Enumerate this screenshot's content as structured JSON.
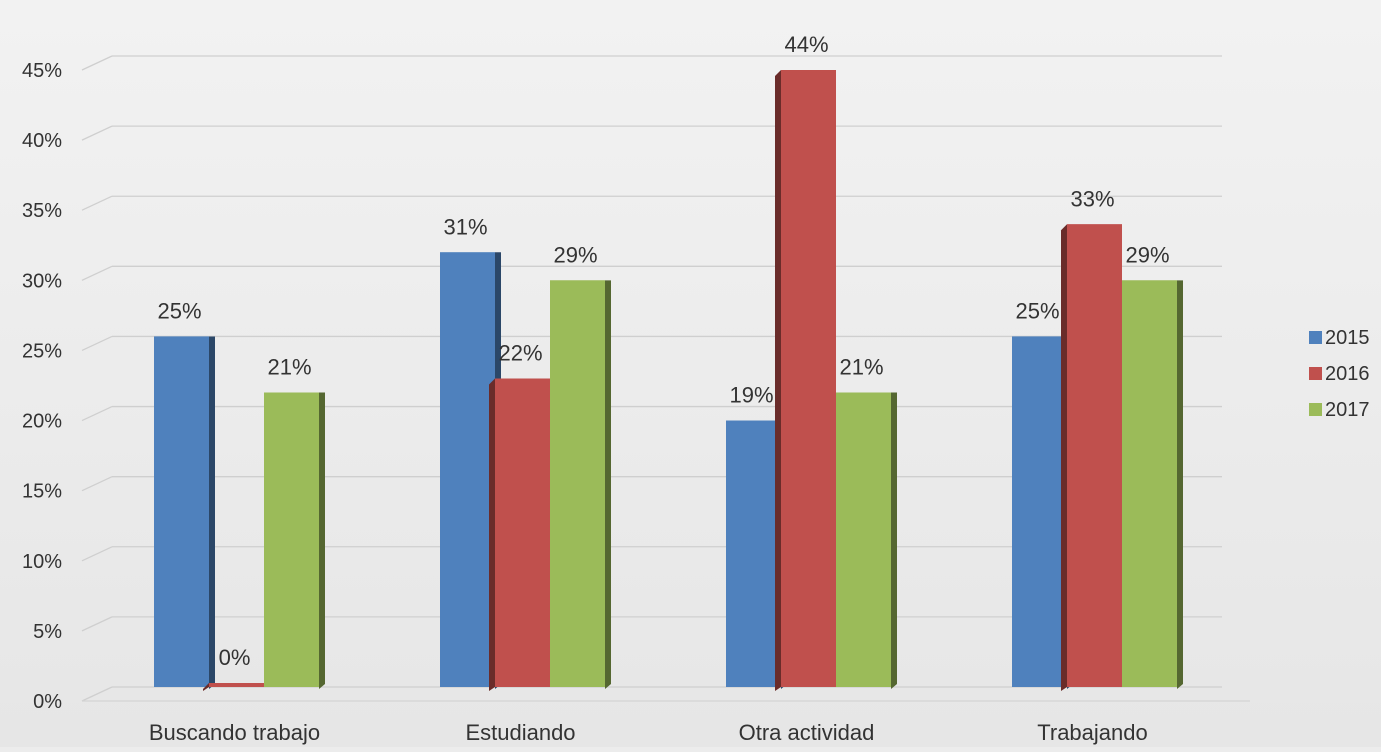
{
  "chart_data": {
    "type": "bar",
    "categories": [
      "Buscando trabajo",
      "Estudiando",
      "Otra actividad",
      "Trabajando"
    ],
    "series": [
      {
        "name": "2015",
        "values": [
          25,
          31,
          19,
          25
        ],
        "labels": [
          "25%",
          "31%",
          "19%",
          "25%"
        ],
        "color": "#4f81bd"
      },
      {
        "name": "2016",
        "values": [
          0,
          22,
          44,
          33
        ],
        "labels": [
          "0%",
          "22%",
          "44%",
          "33%"
        ],
        "color": "#c0504d"
      },
      {
        "name": "2017",
        "values": [
          21,
          29,
          21,
          29
        ],
        "labels": [
          "21%",
          "29%",
          "21%",
          "29%"
        ],
        "color": "#9bbb59"
      }
    ],
    "ylim": [
      0,
      45
    ],
    "y_ticks": [
      0,
      5,
      10,
      15,
      20,
      25,
      30,
      35,
      40,
      45
    ],
    "y_tick_labels": [
      "0%",
      "5%",
      "10%",
      "15%",
      "20%",
      "25%",
      "30%",
      "35%",
      "40%",
      "45%"
    ],
    "grid": true,
    "legend_position": "right",
    "title": "",
    "xlabel": "",
    "ylabel": ""
  }
}
